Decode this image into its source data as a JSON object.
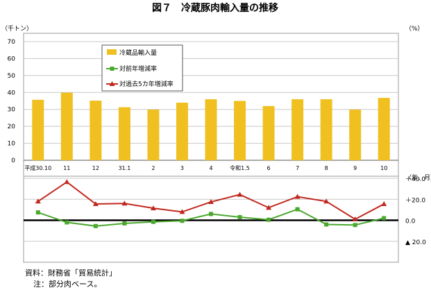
{
  "title": "図７　冷蔵豚肉輸入量の推移",
  "notes": {
    "source": "資料：財務省「貿易統計」",
    "note": "注：部分肉ベース。"
  },
  "chart_data": [
    {
      "type": "bar",
      "unit_label": "（千トン）",
      "right_unit_label": "（%）",
      "ylim": [
        0,
        70
      ],
      "yticks": [
        "0",
        "10",
        "20",
        "30",
        "40",
        "50",
        "60",
        "70"
      ],
      "ytick_values": [
        0,
        10,
        20,
        30,
        40,
        50,
        60,
        70
      ],
      "categories": [
        "平成30.10",
        "11",
        "12",
        "31.1",
        "2",
        "3",
        "4",
        "令和1.5",
        "6",
        "7",
        "8",
        "9",
        "10"
      ],
      "series": [
        {
          "name": "冷蔵品輸入量",
          "color": "#f0c020",
          "values": [
            35.7,
            39.9,
            35.2,
            31.3,
            29.9,
            34.0,
            36.0,
            35.0,
            32.0,
            36.0,
            36.0,
            29.9,
            36.8
          ]
        }
      ],
      "grid": true,
      "legend_position": "top-left"
    },
    {
      "type": "line",
      "period_label": "（年．月）",
      "ylim": [
        -40,
        40
      ],
      "ytick_values": [
        -20,
        0,
        20,
        40
      ],
      "ytick_labels": [
        "▲ 20.0",
        "0.0",
        "＋20.0",
        "＋40.0"
      ],
      "grid": true,
      "series": [
        {
          "name": "対前年増減率",
          "color": "#4aa82e",
          "marker": "square",
          "values": [
            7.5,
            -2.0,
            -5.5,
            -3.0,
            -1.5,
            -0.5,
            6.0,
            3.0,
            0.5,
            10.5,
            -4.0,
            -4.5,
            2.0
          ]
        },
        {
          "name": "対過去5カ年増減率",
          "color": "#c0281e",
          "marker": "triangle",
          "values": [
            18.0,
            36.5,
            15.5,
            16.0,
            11.5,
            8.0,
            17.5,
            24.5,
            12.0,
            22.5,
            18.0,
            1.0,
            15.5
          ]
        }
      ]
    }
  ]
}
